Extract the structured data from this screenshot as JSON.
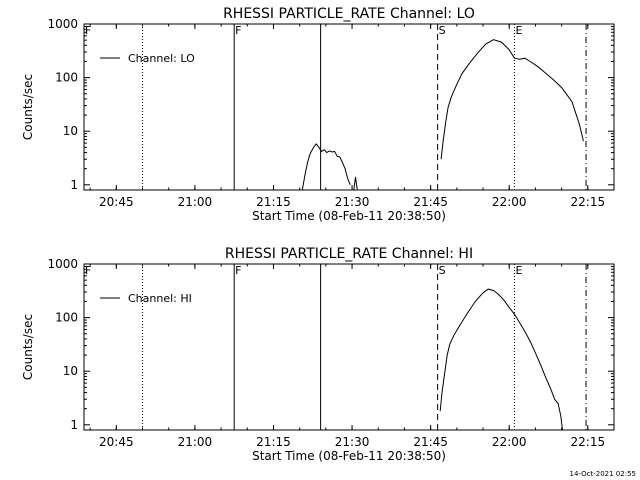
{
  "timestamp": "14-Oct-2021 02:55",
  "chart_data": [
    {
      "type": "line",
      "title": "RHESSI PARTICLE_RATE Channel: LO",
      "xlabel": "Start Time (08-Feb-11 20:38:50)",
      "ylabel": "Counts/sec",
      "yscale": "log",
      "xlim": [
        "20:38:50",
        "22:20:00"
      ],
      "ylim": [
        0.8,
        1000
      ],
      "xticks": [
        "20:45",
        "21:00",
        "21:15",
        "21:30",
        "21:45",
        "22:00",
        "22:15"
      ],
      "yticks": [
        "1",
        "10",
        "100",
        "1000"
      ],
      "legend": {
        "placement": "top-left",
        "label": "Channel: LO"
      },
      "markers": [
        {
          "time": "20:50:00",
          "style": "dotted",
          "label": ""
        },
        {
          "time": "21:07:30",
          "style": "solid",
          "label": "F"
        },
        {
          "time": "21:24:00",
          "style": "solid",
          "label": ""
        },
        {
          "time": "21:46:20",
          "style": "dashed",
          "label": "S"
        },
        {
          "time": "22:01:00",
          "style": "dotted",
          "label": "E"
        },
        {
          "time": "22:14:40",
          "style": "dashdot",
          "label": ""
        }
      ],
      "corner_label": "F",
      "series": [
        {
          "name": "Channel: LO",
          "segments": [
            [
              [
                "21:20:30",
                0.8
              ],
              [
                "21:21:00",
                1.5
              ],
              [
                "21:21:30",
                2.6
              ],
              [
                "21:22:00",
                3.8
              ],
              [
                "21:22:40",
                5
              ],
              [
                "21:23:10",
                5.8
              ],
              [
                "21:23:40",
                5
              ],
              [
                "21:24:10",
                4.2
              ],
              [
                "21:24:40",
                4.5
              ],
              [
                "21:25:10",
                4
              ],
              [
                "21:25:40",
                4.3
              ],
              [
                "21:26:10",
                4.1
              ],
              [
                "21:26:40",
                4.2
              ],
              [
                "21:27:10",
                3.4
              ],
              [
                "21:27:40",
                3.3
              ],
              [
                "21:28:10",
                2.6
              ],
              [
                "21:28:40",
                2
              ],
              [
                "21:29:10",
                1.3
              ],
              [
                "21:29:40",
                1
              ]
            ],
            [
              [
                "21:30:20",
                0.8
              ],
              [
                "21:30:40",
                1.4
              ],
              [
                "21:31:00",
                0.8
              ]
            ],
            [
              [
                "21:47:00",
                3
              ],
              [
                "21:47:20",
                6
              ],
              [
                "21:47:50",
                14
              ],
              [
                "21:48:20",
                28
              ],
              [
                "21:49:00",
                45
              ],
              [
                "21:50:00",
                75
              ],
              [
                "21:51:00",
                120
              ],
              [
                "21:52:30",
                190
              ],
              [
                "21:54:00",
                290
              ],
              [
                "21:55:30",
                420
              ],
              [
                "21:57:00",
                510
              ],
              [
                "21:58:30",
                460
              ],
              [
                "22:00:00",
                330
              ],
              [
                "22:01:00",
                230
              ],
              [
                "22:02:00",
                220
              ],
              [
                "22:03:00",
                230
              ],
              [
                "22:04:00",
                200
              ],
              [
                "22:05:30",
                160
              ],
              [
                "22:07:00",
                120
              ],
              [
                "22:08:30",
                90
              ],
              [
                "22:10:00",
                65
              ],
              [
                "22:11:00",
                48
              ],
              [
                "22:12:00",
                35
              ],
              [
                "22:12:40",
                22
              ],
              [
                "22:13:20",
                14
              ],
              [
                "22:13:50",
                9
              ],
              [
                "22:14:10",
                6.5
              ]
            ]
          ]
        }
      ]
    },
    {
      "type": "line",
      "title": "RHESSI PARTICLE_RATE Channel: HI",
      "xlabel": "Start Time (08-Feb-11 20:38:50)",
      "ylabel": "Counts/sec",
      "yscale": "log",
      "xlim": [
        "20:38:50",
        "22:20:00"
      ],
      "ylim": [
        0.8,
        1000
      ],
      "xticks": [
        "20:45",
        "21:00",
        "21:15",
        "21:30",
        "21:45",
        "22:00",
        "22:15"
      ],
      "yticks": [
        "1",
        "10",
        "100",
        "1000"
      ],
      "legend": {
        "placement": "top-left",
        "label": "Channel: HI"
      },
      "markers": [
        {
          "time": "20:50:00",
          "style": "dotted",
          "label": ""
        },
        {
          "time": "21:07:30",
          "style": "solid",
          "label": "F"
        },
        {
          "time": "21:24:00",
          "style": "solid",
          "label": ""
        },
        {
          "time": "21:46:20",
          "style": "dashed",
          "label": "S"
        },
        {
          "time": "22:01:00",
          "style": "dotted",
          "label": "E"
        },
        {
          "time": "22:14:40",
          "style": "dashdot",
          "label": ""
        }
      ],
      "corner_label": "F",
      "series": [
        {
          "name": "Channel: HI",
          "segments": [
            [
              [
                "21:46:50",
                1.8
              ],
              [
                "21:47:10",
                4
              ],
              [
                "21:47:40",
                9
              ],
              [
                "21:48:10",
                20
              ],
              [
                "21:48:40",
                32
              ],
              [
                "21:49:30",
                48
              ],
              [
                "21:50:30",
                70
              ],
              [
                "21:52:00",
                120
              ],
              [
                "21:53:30",
                200
              ],
              [
                "21:55:00",
                290
              ],
              [
                "21:56:00",
                340
              ],
              [
                "21:57:00",
                320
              ],
              [
                "21:58:00",
                270
              ],
              [
                "21:59:00",
                210
              ],
              [
                "22:00:00",
                155
              ],
              [
                "22:01:00",
                115
              ],
              [
                "22:02:00",
                80
              ],
              [
                "22:03:00",
                55
              ],
              [
                "22:04:00",
                36
              ],
              [
                "22:05:00",
                22
              ],
              [
                "22:06:00",
                13
              ],
              [
                "22:07:00",
                7.5
              ],
              [
                "22:08:00",
                4.5
              ],
              [
                "22:08:40",
                3
              ],
              [
                "22:09:20",
                2.5
              ],
              [
                "22:09:50",
                1.5
              ],
              [
                "22:10:10",
                0.8
              ]
            ]
          ]
        }
      ]
    }
  ]
}
